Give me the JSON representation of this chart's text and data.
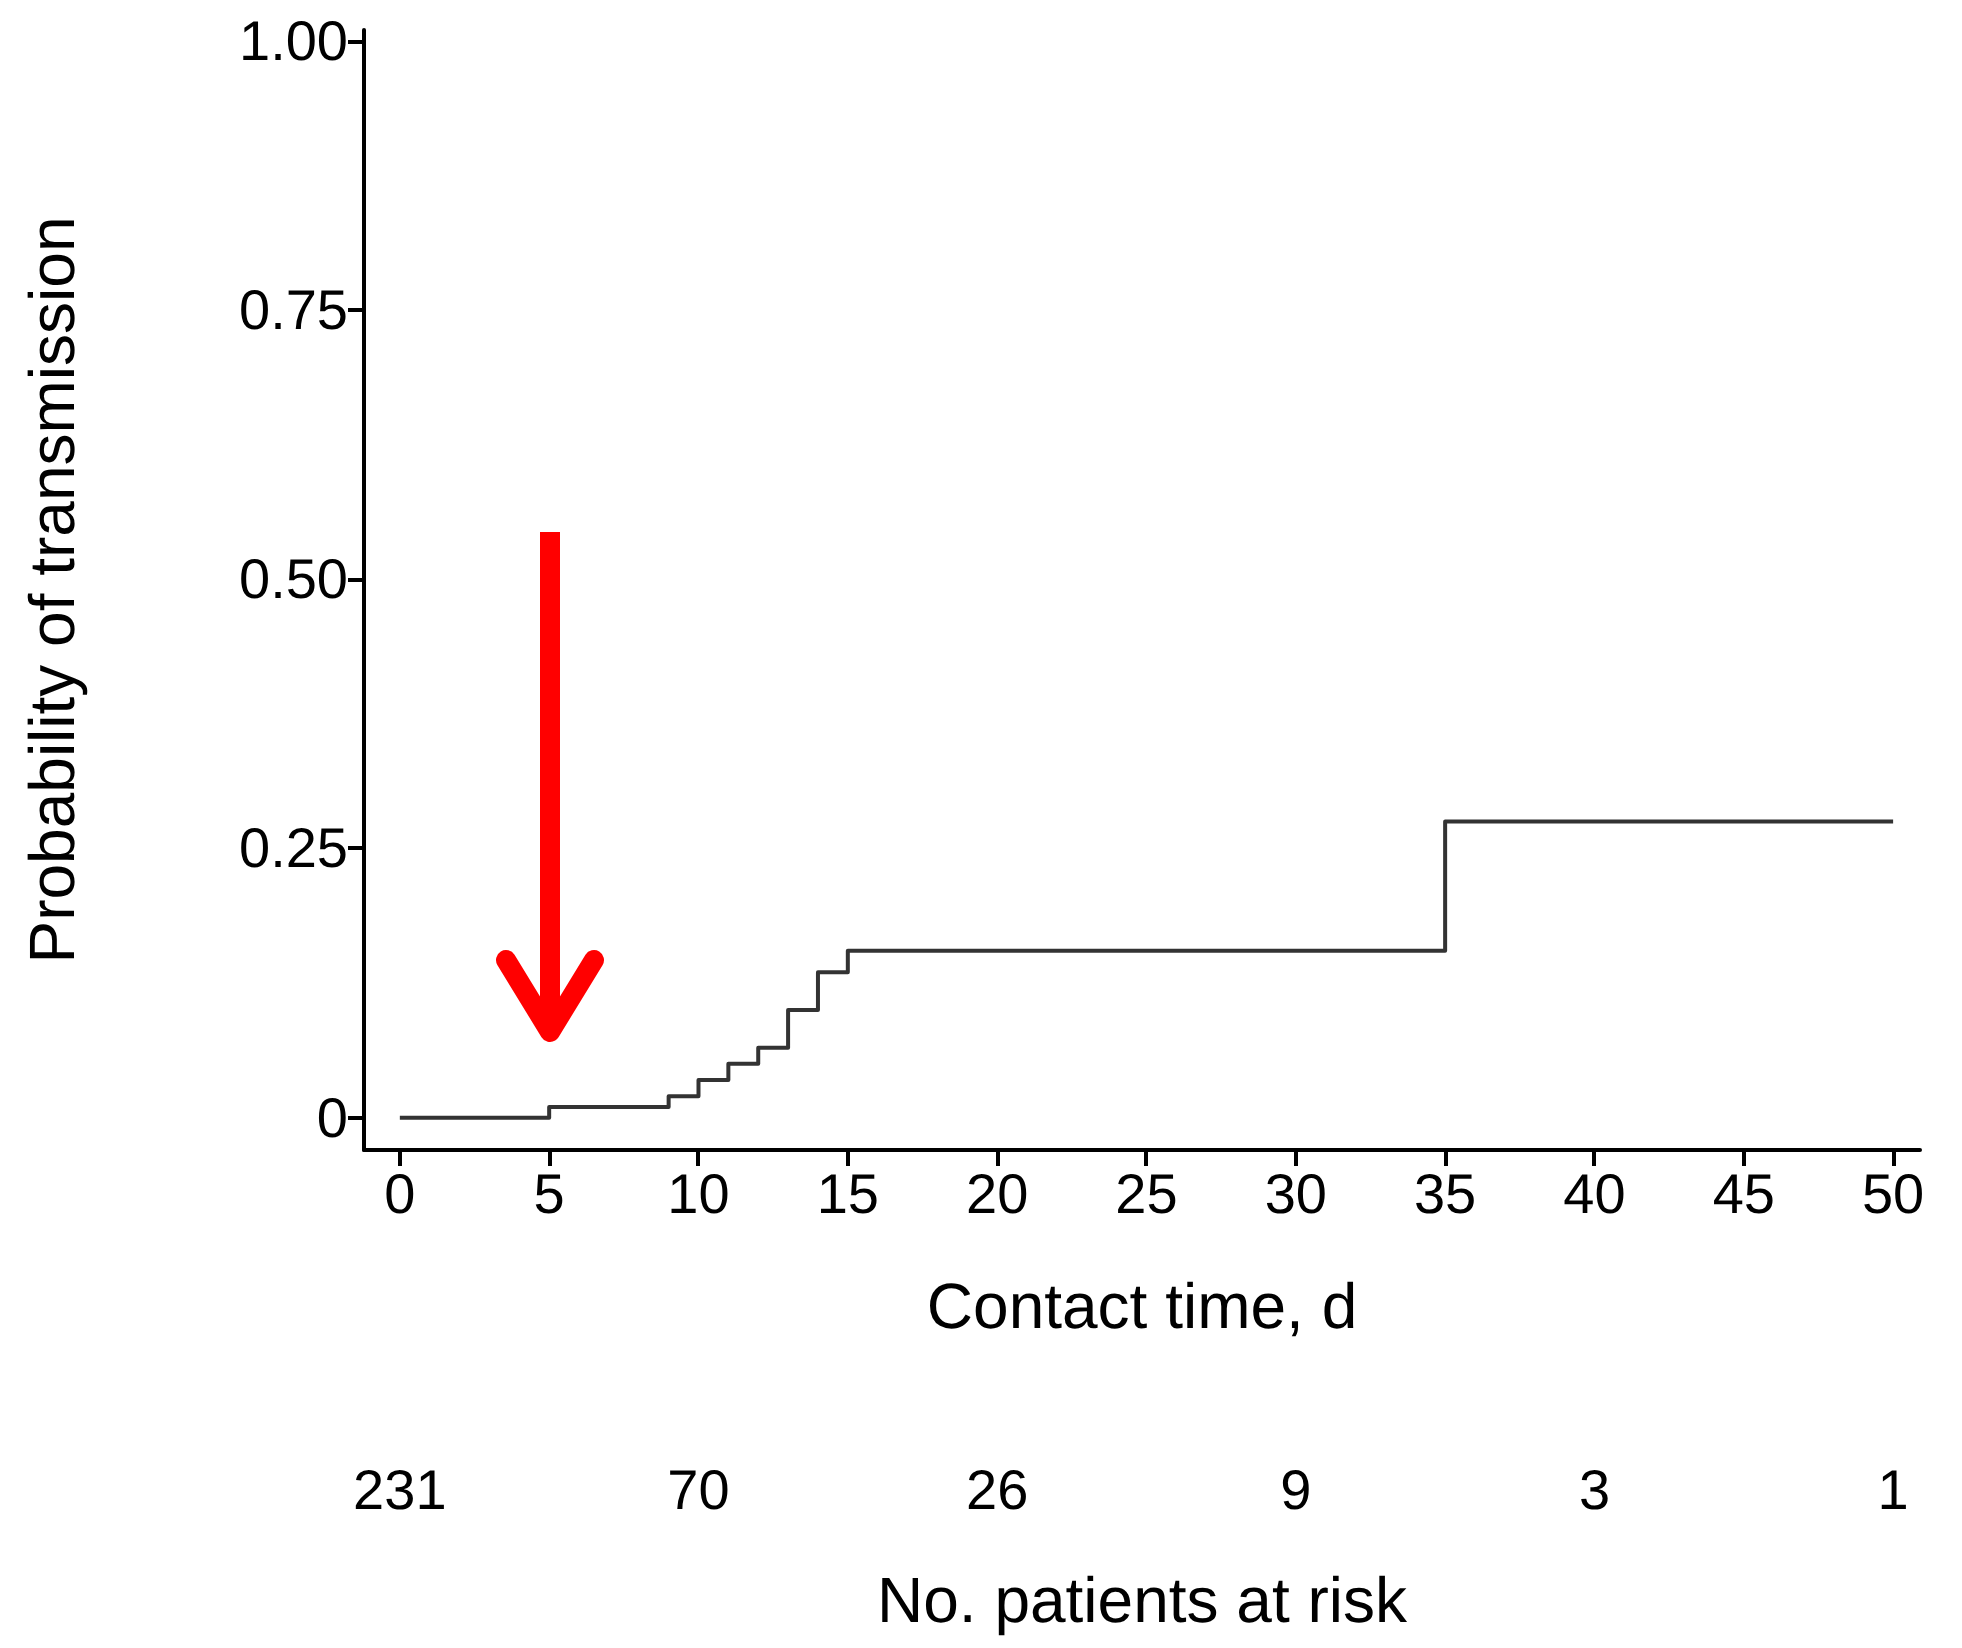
{
  "chart_data": {
    "type": "step",
    "xlabel": "Contact time, d",
    "ylabel": "Probability of transmission",
    "x": [
      0,
      5,
      9,
      10,
      11,
      12,
      13,
      14,
      15,
      35,
      50
    ],
    "series": [
      {
        "color": "#333333",
        "values": [
          0,
          0.01,
          0.02,
          0.035,
          0.05,
          0.065,
          0.1,
          0.135,
          0.155,
          0.275,
          0.275
        ]
      }
    ],
    "xlim": [
      -1.2,
      50.9
    ],
    "xticks": [
      0,
      5,
      10,
      15,
      20,
      25,
      30,
      35,
      40,
      45,
      50
    ],
    "ylim": [
      -0.03,
      1.01
    ],
    "yticks": [
      0,
      0.25,
      {
        "value": 0.5,
        "label": "0.50"
      },
      0.75,
      {
        "value": 1,
        "label": "1.00"
      }
    ],
    "annotations": [
      "231",
      "70",
      "26",
      "9",
      "3",
      "1",
      "No. patients at risk"
    ],
    "grid": false,
    "marker": "none",
    "line_style": "solid"
  }
}
